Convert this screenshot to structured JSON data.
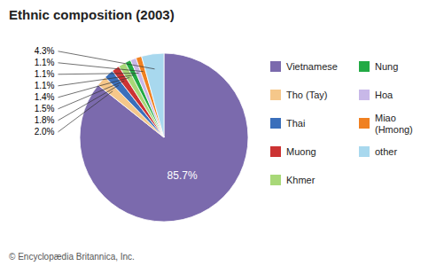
{
  "chart_data": {
    "type": "pie",
    "title": "Ethnic composition (2003)",
    "categories": [
      "Vietnamese",
      "Tho (Tay)",
      "Thai",
      "Muong",
      "Khmer",
      "Nung",
      "Hoa",
      "Miao\n(Hmong)",
      "other"
    ],
    "values": [
      85.7,
      2.0,
      1.8,
      1.5,
      1.4,
      1.1,
      1.1,
      1.1,
      4.3
    ],
    "value_labels": [
      "85.7%",
      "2.0%",
      "1.8%",
      "1.5%",
      "1.4%",
      "1.1%",
      "1.1%",
      "1.1%",
      "4.3%"
    ],
    "colors": [
      "#7b6aad",
      "#f5c78a",
      "#3a6fbb",
      "#cc3333",
      "#a8d878",
      "#22aa44",
      "#c8b8e8",
      "#f08020",
      "#a8d8ee"
    ],
    "data_labels": true,
    "legend": "right",
    "footnote": "© Encyclopædia Britannica, Inc."
  }
}
